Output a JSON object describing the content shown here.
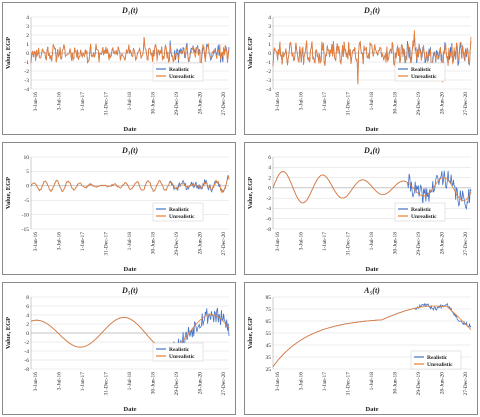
{
  "colors": {
    "realistic": "#4472C4",
    "unrealistic": "#ED7D31"
  },
  "chart_data": [
    {
      "type": "line",
      "title": "D₁(t)",
      "ylabel": "Value, EGP",
      "xlabel": "Date",
      "ylim": [
        -4,
        4
      ],
      "yticks": [
        -4,
        -3,
        -2,
        -1,
        0,
        1,
        2,
        3,
        4
      ],
      "xticks": [
        "3-Jan-16",
        "3-Jul-16",
        "1-Jan-17",
        "31-Dec-17",
        "1-Jul-18",
        "30-Jun-18",
        "29-Dec-19",
        "28-Jun-20",
        "27-Dec-20"
      ],
      "legend": "center-right",
      "seed": 11,
      "kind": "noise",
      "amp": 0.9,
      "split": 0.7,
      "series": [
        {
          "name": "Realistic"
        },
        {
          "name": "Unrealistic"
        }
      ]
    },
    {
      "type": "line",
      "title": "D₂(t)",
      "ylabel": "Value, EGP",
      "xlabel": "Date",
      "ylim": [
        -4,
        4
      ],
      "yticks": [
        -4,
        -3,
        -2,
        -1,
        0,
        1,
        2,
        3,
        4
      ],
      "xticks": [
        "3-Jan-16",
        "3-Jul-16",
        "1-Jan-17",
        "31-Dec-17",
        "1-Jul-18",
        "30-Jun-18",
        "29-Dec-19",
        "28-Jun-20",
        "27-Dec-20"
      ],
      "legend": "center-right",
      "seed": 23,
      "kind": "noise",
      "amp": 1.2,
      "split": 0.66,
      "series": [
        {
          "name": "Realistic"
        },
        {
          "name": "Unrealistic"
        }
      ]
    },
    {
      "type": "line",
      "title": "D₃(t)",
      "ylabel": "Value, EGP",
      "xlabel": "Date",
      "ylim": [
        -15,
        10
      ],
      "yticks": [
        -15,
        -10,
        -5,
        0,
        5,
        10
      ],
      "xticks": [
        "3-Jan-16",
        "3-Jul-16",
        "1-Jan-17",
        "31-Dec-17",
        "1-Jul-18",
        "30-Jun-18",
        "29-Dec-19",
        "28-Jun-20",
        "27-Dec-20"
      ],
      "legend": "center-right",
      "seed": 37,
      "kind": "wave",
      "amp": 1.8,
      "split": 0.7,
      "series": [
        {
          "name": "Realistic"
        },
        {
          "name": "Unrealistic"
        }
      ]
    },
    {
      "type": "line",
      "title": "D₄(t)",
      "ylabel": "Value, EGP",
      "xlabel": "Date",
      "ylim": [
        -8,
        6
      ],
      "yticks": [
        -8,
        -6,
        -4,
        -2,
        0,
        2,
        4,
        6
      ],
      "xticks": [
        "3-Jan-16",
        "3-Jul-16",
        "1-Jan-17",
        "31-Dec-17",
        "1-Jul-18",
        "30-Jun-18",
        "29-Dec-19",
        "28-Jun-20",
        "27-Dec-20"
      ],
      "legend": "center-right",
      "seed": 41,
      "kind": "slowwave",
      "amp": 3.2,
      "split": 0.68,
      "series": [
        {
          "name": "Realistic"
        },
        {
          "name": "Unrealistic"
        }
      ]
    },
    {
      "type": "line",
      "title": "D₅(t)",
      "ylabel": "Value, EGP",
      "xlabel": "Date",
      "ylim": [
        -8,
        8
      ],
      "yticks": [
        -8,
        -6,
        -4,
        -2,
        0,
        2,
        4,
        6,
        8
      ],
      "xticks": [
        "3-Jan-16",
        "3-Jul-16",
        "1-Jan-17",
        "31-Dec-17",
        "1-Jul-18",
        "30-Jun-18",
        "29-Dec-19",
        "28-Jun-20",
        "27-Dec-20"
      ],
      "legend": "center-right",
      "seed": 53,
      "kind": "verysmooth",
      "amp": 3.5,
      "split": 0.68,
      "series": [
        {
          "name": "Realistic"
        },
        {
          "name": "Unrealistic"
        }
      ]
    },
    {
      "type": "line",
      "title": "A₅(t)",
      "ylabel": "Value, EGP",
      "xlabel": "Date",
      "ylim": [
        25,
        85
      ],
      "yticks": [
        25,
        35,
        45,
        55,
        65,
        75,
        85
      ],
      "xticks": [
        "3-Jan-16",
        "3-Jul-16",
        "1-Jan-17",
        "31-Dec-17",
        "1-Jul-18",
        "30-Jun-18",
        "29-Dec-19",
        "28-Jun-20",
        "27-Dec-20"
      ],
      "legend": "bottom-right",
      "seed": 67,
      "kind": "trend",
      "amp": 1,
      "split": 0.72,
      "series": [
        {
          "name": "Realistic"
        },
        {
          "name": "Unrealistic"
        }
      ]
    }
  ]
}
